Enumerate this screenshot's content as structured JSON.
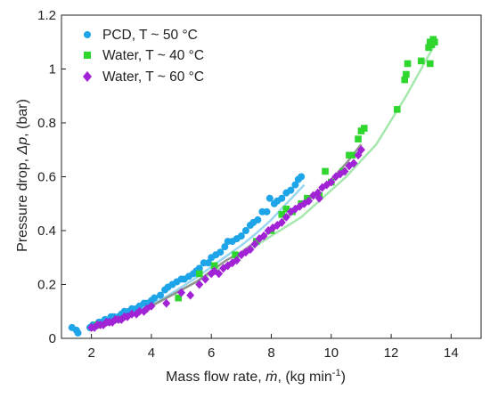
{
  "chart_data": {
    "type": "scatter",
    "xlabel_parts": [
      "Mass flow rate, ",
      "ṁ",
      ", (kg min",
      "-1",
      ")"
    ],
    "ylabel_parts": [
      "Pressure drop, ",
      "Δp",
      ", (bar)"
    ],
    "xlim": [
      1,
      15
    ],
    "ylim": [
      0,
      1.2
    ],
    "xticks": [
      2,
      4,
      6,
      8,
      10,
      12,
      14
    ],
    "yticks": [
      0,
      0.2,
      0.4,
      0.6,
      0.8,
      1,
      1.2
    ],
    "xtick_labels": [
      "2",
      "4",
      "6",
      "8",
      "10",
      "12",
      "14"
    ],
    "ytick_labels": [
      "0",
      "0.2",
      "0.4",
      "0.6",
      "0.8",
      "1",
      "1.2"
    ],
    "grid": false,
    "legend_position": "top-left",
    "series": [
      {
        "name": "PCD, T ~ 50  °C",
        "marker": "circle",
        "color": "#1ea4e8",
        "fit_color": "#8fd1f0",
        "fit": {
          "x": [
            1.9,
            2.5,
            3,
            3.5,
            4,
            4.5,
            5,
            5.5,
            6,
            6.5,
            7,
            7.5,
            8,
            8.5,
            9.1
          ],
          "y": [
            0.03,
            0.055,
            0.078,
            0.1,
            0.125,
            0.155,
            0.19,
            0.225,
            0.265,
            0.305,
            0.345,
            0.39,
            0.44,
            0.5,
            0.57
          ]
        },
        "points": [
          [
            1.35,
            0.04
          ],
          [
            1.5,
            0.03
          ],
          [
            1.55,
            0.02
          ],
          [
            1.95,
            0.04
          ],
          [
            2.05,
            0.05
          ],
          [
            2.15,
            0.05
          ],
          [
            2.25,
            0.06
          ],
          [
            2.35,
            0.06
          ],
          [
            2.45,
            0.07
          ],
          [
            2.55,
            0.06
          ],
          [
            2.65,
            0.08
          ],
          [
            2.75,
            0.08
          ],
          [
            2.9,
            0.08
          ],
          [
            3.0,
            0.09
          ],
          [
            3.1,
            0.1
          ],
          [
            3.25,
            0.1
          ],
          [
            3.35,
            0.11
          ],
          [
            3.5,
            0.11
          ],
          [
            3.6,
            0.12
          ],
          [
            3.75,
            0.13
          ],
          [
            3.85,
            0.13
          ],
          [
            4.0,
            0.14
          ],
          [
            4.1,
            0.15
          ],
          [
            4.3,
            0.16
          ],
          [
            4.45,
            0.18
          ],
          [
            4.55,
            0.19
          ],
          [
            4.7,
            0.2
          ],
          [
            4.85,
            0.21
          ],
          [
            5.0,
            0.22
          ],
          [
            5.1,
            0.22
          ],
          [
            5.25,
            0.23
          ],
          [
            5.4,
            0.24
          ],
          [
            5.5,
            0.25
          ],
          [
            5.6,
            0.26
          ],
          [
            5.75,
            0.28
          ],
          [
            5.9,
            0.28
          ],
          [
            6.0,
            0.3
          ],
          [
            6.15,
            0.31
          ],
          [
            6.3,
            0.32
          ],
          [
            6.45,
            0.34
          ],
          [
            6.55,
            0.36
          ],
          [
            6.7,
            0.36
          ],
          [
            6.85,
            0.37
          ],
          [
            7.0,
            0.38
          ],
          [
            7.15,
            0.4
          ],
          [
            7.3,
            0.42
          ],
          [
            7.4,
            0.43
          ],
          [
            7.55,
            0.44
          ],
          [
            7.7,
            0.47
          ],
          [
            7.85,
            0.47
          ],
          [
            7.95,
            0.52
          ],
          [
            8.1,
            0.5
          ],
          [
            8.2,
            0.51
          ],
          [
            8.35,
            0.52
          ],
          [
            8.5,
            0.54
          ],
          [
            8.65,
            0.55
          ],
          [
            8.8,
            0.57
          ],
          [
            8.9,
            0.59
          ],
          [
            9.0,
            0.6
          ]
        ]
      },
      {
        "name": "Water, T ~ 40  °C",
        "marker": "square",
        "color": "#2ed62e",
        "fit_color": "#9be6a4",
        "fit": {
          "x": [
            2,
            3,
            4,
            5,
            6,
            7,
            8,
            9,
            10,
            10.5,
            11,
            11.5,
            12,
            12.5,
            13,
            13.5
          ],
          "y": [
            0.03,
            0.07,
            0.12,
            0.18,
            0.24,
            0.31,
            0.38,
            0.45,
            0.55,
            0.6,
            0.66,
            0.72,
            0.81,
            0.9,
            1.0,
            1.1
          ]
        },
        "points": [
          [
            2.2,
            0.05
          ],
          [
            2.9,
            0.07
          ],
          [
            4.9,
            0.15
          ],
          [
            5.6,
            0.24
          ],
          [
            6.1,
            0.27
          ],
          [
            6.8,
            0.31
          ],
          [
            7.5,
            0.36
          ],
          [
            8.0,
            0.4
          ],
          [
            8.35,
            0.46
          ],
          [
            8.5,
            0.48
          ],
          [
            8.7,
            0.47
          ],
          [
            9.0,
            0.5
          ],
          [
            9.2,
            0.52
          ],
          [
            9.6,
            0.53
          ],
          [
            9.8,
            0.62
          ],
          [
            10.0,
            0.58
          ],
          [
            10.4,
            0.62
          ],
          [
            10.6,
            0.68
          ],
          [
            10.7,
            0.68
          ],
          [
            10.9,
            0.74
          ],
          [
            11.0,
            0.77
          ],
          [
            11.1,
            0.78
          ],
          [
            12.2,
            0.85
          ],
          [
            12.45,
            0.96
          ],
          [
            12.5,
            0.98
          ],
          [
            12.55,
            1.02
          ],
          [
            13.0,
            1.03
          ],
          [
            13.25,
            1.08
          ],
          [
            13.3,
            1.1
          ],
          [
            13.35,
            1.09
          ],
          [
            13.4,
            1.11
          ],
          [
            13.45,
            1.1
          ],
          [
            13.3,
            1.02
          ]
        ]
      },
      {
        "name": "Water, T ~ 60  °C",
        "marker": "diamond",
        "color": "#a223d6",
        "fit_color": "#8a8a8a",
        "fit": {
          "x": [
            1.95,
            2.5,
            3,
            3.5,
            4,
            4.5,
            5,
            5.5,
            6,
            6.5,
            7,
            7.5,
            8,
            8.5,
            9,
            9.5,
            10,
            10.5,
            11
          ],
          "y": [
            0.03,
            0.05,
            0.07,
            0.09,
            0.12,
            0.15,
            0.18,
            0.21,
            0.25,
            0.29,
            0.32,
            0.36,
            0.4,
            0.45,
            0.49,
            0.54,
            0.59,
            0.65,
            0.72
          ]
        },
        "points": [
          [
            2.0,
            0.04
          ],
          [
            2.1,
            0.04
          ],
          [
            2.2,
            0.05
          ],
          [
            2.3,
            0.05
          ],
          [
            2.4,
            0.05
          ],
          [
            2.5,
            0.06
          ],
          [
            2.6,
            0.06
          ],
          [
            2.7,
            0.06
          ],
          [
            2.8,
            0.07
          ],
          [
            2.9,
            0.07
          ],
          [
            3.0,
            0.07
          ],
          [
            3.1,
            0.08
          ],
          [
            3.2,
            0.08
          ],
          [
            3.35,
            0.09
          ],
          [
            3.5,
            0.09
          ],
          [
            3.6,
            0.1
          ],
          [
            3.75,
            0.1
          ],
          [
            3.85,
            0.11
          ],
          [
            4.0,
            0.12
          ],
          [
            4.5,
            0.13
          ],
          [
            5.0,
            0.17
          ],
          [
            5.3,
            0.16
          ],
          [
            5.6,
            0.2
          ],
          [
            5.8,
            0.22
          ],
          [
            6.0,
            0.24
          ],
          [
            6.1,
            0.25
          ],
          [
            6.25,
            0.24
          ],
          [
            6.4,
            0.26
          ],
          [
            6.55,
            0.27
          ],
          [
            6.7,
            0.28
          ],
          [
            6.85,
            0.29
          ],
          [
            7.0,
            0.31
          ],
          [
            7.15,
            0.32
          ],
          [
            7.3,
            0.33
          ],
          [
            7.45,
            0.35
          ],
          [
            7.6,
            0.37
          ],
          [
            7.75,
            0.38
          ],
          [
            7.9,
            0.4
          ],
          [
            8.05,
            0.41
          ],
          [
            8.2,
            0.42
          ],
          [
            8.35,
            0.43
          ],
          [
            8.5,
            0.45
          ],
          [
            8.65,
            0.47
          ],
          [
            8.8,
            0.48
          ],
          [
            8.95,
            0.49
          ],
          [
            9.1,
            0.5
          ],
          [
            9.25,
            0.51
          ],
          [
            9.4,
            0.53
          ],
          [
            9.55,
            0.54
          ],
          [
            9.7,
            0.56
          ],
          [
            9.85,
            0.57
          ],
          [
            10.0,
            0.58
          ],
          [
            10.15,
            0.6
          ],
          [
            10.3,
            0.61
          ],
          [
            10.45,
            0.62
          ],
          [
            10.6,
            0.64
          ],
          [
            10.75,
            0.65
          ],
          [
            10.9,
            0.68
          ],
          [
            11.0,
            0.7
          ],
          [
            9.6,
            0.52
          ]
        ]
      }
    ]
  }
}
